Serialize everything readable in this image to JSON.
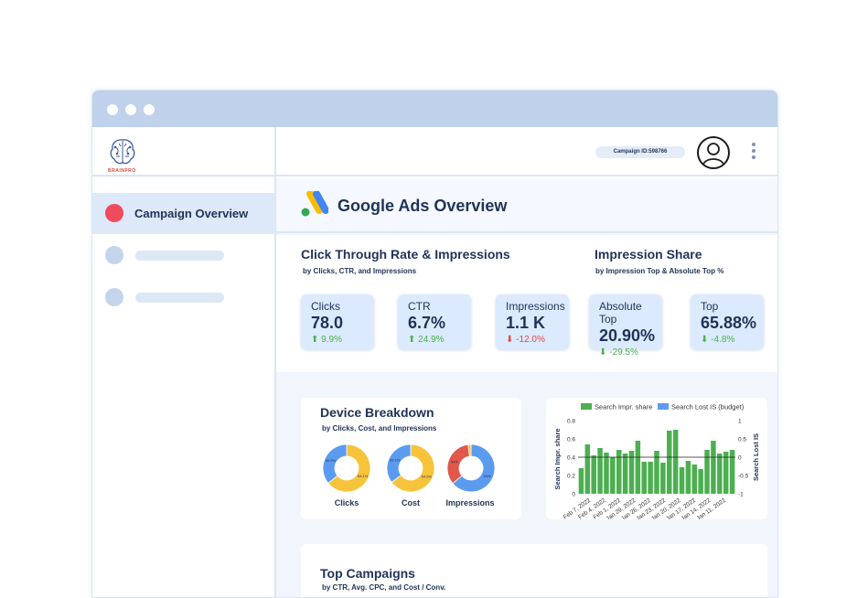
{
  "app": {
    "logo_text": "BRAINPRO"
  },
  "sidebar": {
    "items": [
      {
        "label": "Campaign Overview",
        "active": true
      },
      {
        "label": "",
        "active": false
      },
      {
        "label": "",
        "active": false
      }
    ]
  },
  "header": {
    "campaign_id": "Campaign ID:598766"
  },
  "page": {
    "title": "Google Ads Overview"
  },
  "ctr_section": {
    "title": "Click Through Rate & Impressions",
    "subtitle": "by Clicks, CTR, and Impressions",
    "kpis": [
      {
        "label": "Clicks",
        "value": "78.0",
        "delta": "9.9%",
        "direction": "up"
      },
      {
        "label": "CTR",
        "value": "6.7%",
        "delta": "24.9%",
        "direction": "up"
      },
      {
        "label": "Impressions",
        "value": "1.1 K",
        "delta": "-12.0%",
        "direction": "down"
      }
    ]
  },
  "share_section": {
    "title": "Impression Share",
    "subtitle": "by Impression Top & Absolute Top %",
    "kpis": [
      {
        "label": "Absolute Top",
        "value": "20.90%",
        "delta": "-29.5%",
        "direction": "down"
      },
      {
        "label": "Top",
        "value": "65.88%",
        "delta": "-4.8%",
        "direction": "down"
      }
    ]
  },
  "device_section": {
    "title": "Device Breakdown",
    "subtitle": "by Clicks, Cost, and Impressions",
    "donuts": [
      {
        "label": "Clicks",
        "slices": [
          {
            "value": 64.1,
            "text": "64.1%",
            "color": "#f6c33b"
          },
          {
            "value": 35.9,
            "text": "35.9%",
            "color": "#5b9bef"
          }
        ]
      },
      {
        "label": "Cost",
        "slices": [
          {
            "value": 64.9,
            "text": "64.9%",
            "color": "#f6c33b"
          },
          {
            "value": 35.1,
            "text": "35.1%",
            "color": "#5b9bef"
          }
        ]
      },
      {
        "label": "Impressions",
        "slices": [
          {
            "value": 64.0,
            "text": "64%",
            "color": "#5b9bef"
          },
          {
            "value": 34.0,
            "text": "34%",
            "color": "#e0584b"
          },
          {
            "value": 2.0,
            "text": "",
            "color": "#f6c33b"
          }
        ]
      }
    ]
  },
  "chart_data": {
    "type": "bar",
    "title": "",
    "legend": {
      "placement": "top",
      "entries": [
        "Search Impr. share",
        "Search Lost IS (budget)"
      ]
    },
    "ylabel": "Search Impr. share",
    "y2label": "Search Lost IS",
    "ylim": [
      0,
      0.8
    ],
    "y2lim": [
      -1,
      1
    ],
    "yticks": [
      "0",
      "0.2",
      "0.4",
      "0.6",
      "0.8"
    ],
    "y2ticks": [
      "-1",
      "-0.5",
      "0",
      "0.5",
      "1"
    ],
    "xticklabels": [
      "Feb 7, 2022",
      "Feb 4, 2022",
      "Feb 1, 2022",
      "Jan 29, 2022",
      "Jan 26, 2022",
      "Jan 23, 2022",
      "Jan 20, 2022",
      "Jan 17, 2022",
      "Jan 14, 2022",
      "Jan 11, 2022"
    ],
    "series": [
      {
        "name": "Search Impr. share",
        "color": "#4caf50",
        "values": [
          0.28,
          0.54,
          0.42,
          0.5,
          0.45,
          0.4,
          0.48,
          0.44,
          0.47,
          0.58,
          0.35,
          0.35,
          0.47,
          0.34,
          0.69,
          0.7,
          0.29,
          0.36,
          0.32,
          0.27,
          0.48,
          0.58,
          0.44,
          0.46,
          0.48
        ]
      },
      {
        "name": "Search Lost IS (budget)",
        "color": "#5b9bef",
        "values": [
          0,
          0,
          0,
          0,
          0,
          0,
          0,
          0,
          0,
          0,
          0,
          0,
          0,
          0,
          0,
          0,
          0,
          0,
          0,
          0,
          0,
          0,
          0,
          0,
          0
        ]
      }
    ]
  },
  "campaigns_section": {
    "title": "Top Campaigns",
    "subtitle": "by CTR, Avg. CPC, and Cost / Conv."
  },
  "colors": {
    "accent": "#1f3357",
    "positive": "#4caf50",
    "negative": "#e04848",
    "brand_dot": "#f04a5e"
  }
}
